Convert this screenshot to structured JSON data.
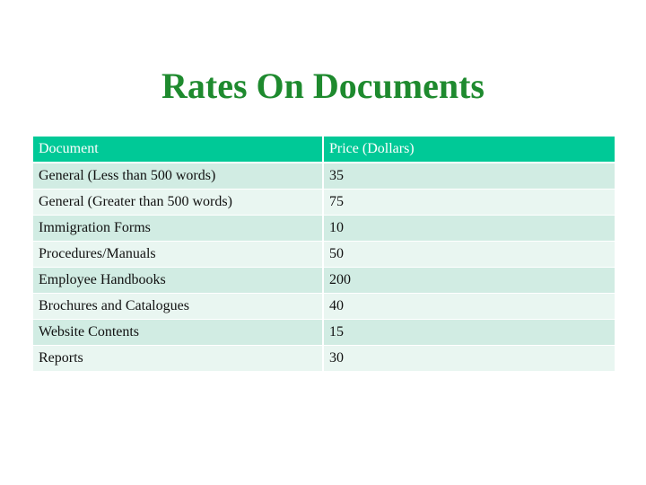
{
  "title": "Rates On Documents",
  "table": {
    "headers": [
      "Document",
      "Price (Dollars)"
    ],
    "rows": [
      [
        "General (Less than 500 words)",
        "35"
      ],
      [
        "General (Greater than 500 words)",
        "75"
      ],
      [
        "Immigration Forms",
        "10"
      ],
      [
        "Procedures/Manuals",
        "50"
      ],
      [
        "Employee Handbooks",
        "200"
      ],
      [
        "Brochures and Catalogues",
        "40"
      ],
      [
        "Website Contents",
        "15"
      ],
      [
        "Reports",
        "30"
      ]
    ]
  },
  "colors": {
    "title": "#1e8a2e",
    "header_bg": "#00c997",
    "row_bg": "#d1ece3",
    "row_alt_bg": "#e9f6f1"
  }
}
